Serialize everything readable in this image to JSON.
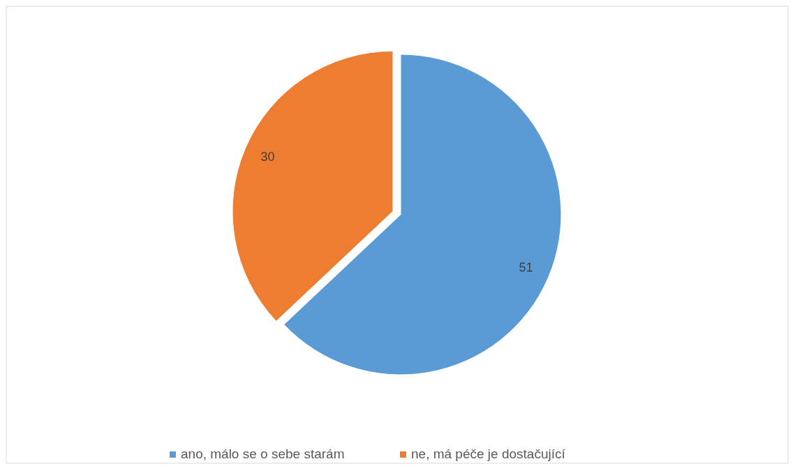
{
  "chart_data": {
    "type": "pie",
    "categories": [
      "ano, málo se o sebe starám",
      "ne, má péče je dostačující"
    ],
    "values": [
      51,
      30
    ],
    "colors": [
      "#5b9bd5",
      "#ed7d31"
    ],
    "data_labels": true,
    "legend": "bottom"
  }
}
